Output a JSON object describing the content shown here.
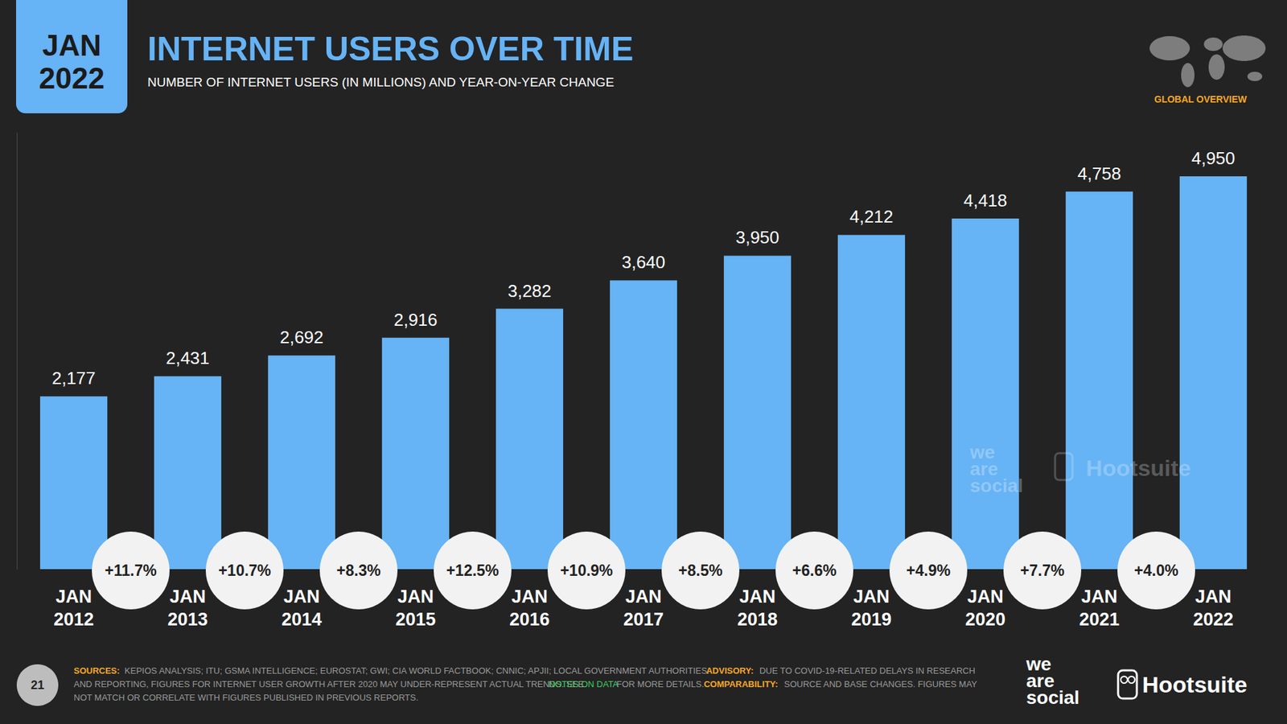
{
  "chart_data": {
    "type": "bar",
    "title": "INTERNET USERS OVER TIME",
    "subtitle": "NUMBER OF INTERNET USERS (IN MILLIONS) AND YEAR-ON-YEAR CHANGE",
    "categories": [
      "JAN 2012",
      "JAN 2013",
      "JAN 2014",
      "JAN 2015",
      "JAN 2016",
      "JAN 2017",
      "JAN 2018",
      "JAN 2019",
      "JAN 2020",
      "JAN 2021",
      "JAN 2022"
    ],
    "values": [
      2177,
      2431,
      2692,
      2916,
      3282,
      3640,
      3950,
      4212,
      4418,
      4758,
      4950
    ],
    "value_labels": [
      "2,177",
      "2,431",
      "2,692",
      "2,916",
      "3,282",
      "3,640",
      "3,950",
      "4,212",
      "4,418",
      "4,758",
      "4,950"
    ],
    "yoy_change": {
      "values": [
        11.7,
        10.7,
        8.3,
        12.5,
        10.9,
        8.5,
        6.6,
        4.9,
        7.7,
        4.0
      ],
      "value_labels": [
        "+11.7%",
        "+10.7%",
        "+8.3%",
        "+12.5%",
        "+10.9%",
        "+8.5%",
        "+6.6%",
        "+4.9%",
        "+7.7%",
        "+4.0%"
      ]
    },
    "color": "#66b3f5",
    "ylim": [
      0,
      5500
    ],
    "yticks": [],
    "grid": false,
    "data_labels": true,
    "tick_labels": "x"
  },
  "header": {
    "badge": "JAN 2022",
    "section": "GLOBAL OVERVIEW",
    "page_number": "21"
  },
  "footer": {
    "sources_label": "SOURCES:",
    "sources": "KEPIOS ANALYSIS; ITU; GSMA INTELLIGENCE; EUROSTAT; GWI; CIA WORLD FACTBOOK; CNNIC; APJII; LOCAL GOVERNMENT AUTHORITIES.",
    "advisory_label": "ADVISORY:",
    "advisory": "DUE TO COVID-19-RELATED DELAYS IN RESEARCH AND REPORTING, FIGURES FOR INTERNET USER GROWTH AFTER 2020 MAY UNDER-REPRESENT ACTUAL TRENDS. SEE",
    "advisory_link": "NOTES ON DATA",
    "advisory_end": "FOR MORE DETAILS.",
    "comparability_label": "COMPARABILITY:",
    "comparability": "SOURCE AND BASE CHANGES. FIGURES MAY NOT MATCH OR CORRELATE WITH FIGURES PUBLISHED IN PREVIOUS REPORTS."
  },
  "logos": [
    "we are social",
    "Hootsuite"
  ],
  "watermark": [
    "we are social",
    "Hootsuite"
  ]
}
